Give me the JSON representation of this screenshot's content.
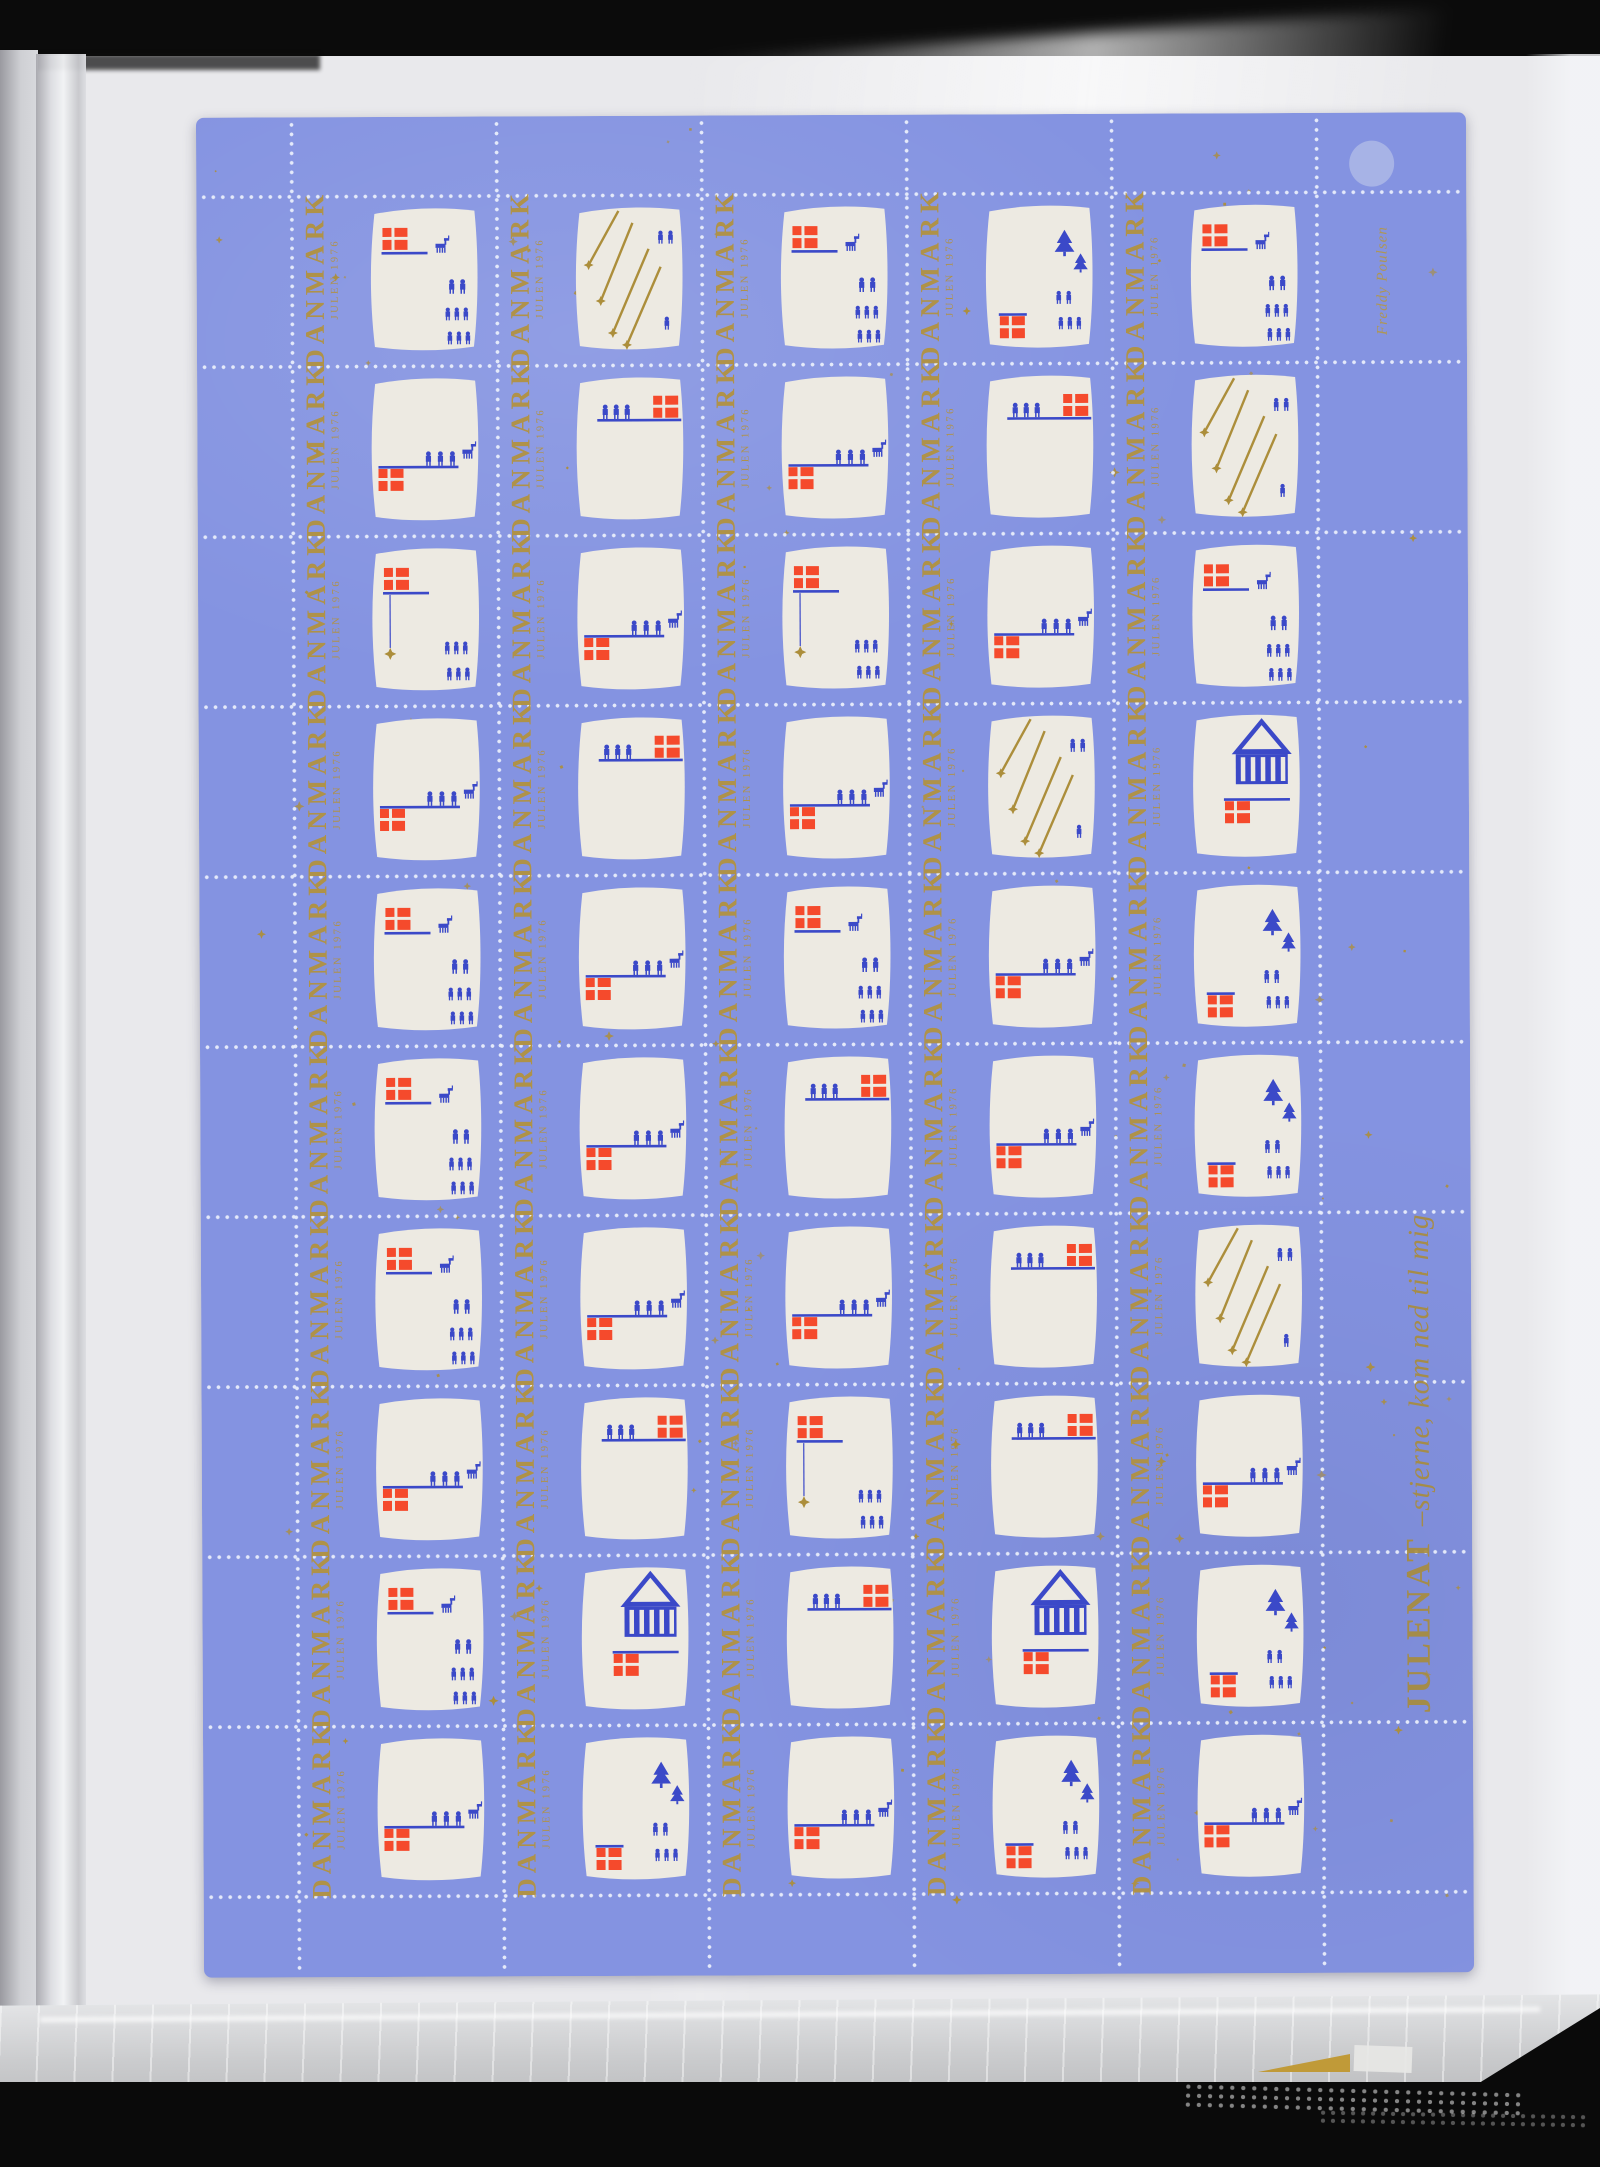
{
  "photo": {
    "subject": "Photograph of a full sheet of 50 Danish Christmas seals (Julen 1976) stored in a stamp-album plastic sleeve",
    "album_page_color": "#e9e9ec",
    "top_bar_color": "#0b0b0b",
    "bottom_shelf_color": "#0a0a0a",
    "plastic_color": "#d6d7db"
  },
  "sheet": {
    "paper_color": "#8493e1",
    "rows": 10,
    "columns": 5,
    "stamp_count": 50,
    "perforation_dot_color": "#e9eefb",
    "gold_color": "#ac8e3b",
    "stamp": {
      "country_label": "DANMARK",
      "issue_label": "JULEN 1976",
      "label_color": "#b3923c",
      "hill_color": "#edeae2",
      "flag_color": "#f54a2c",
      "figure_color": "#3b49c8"
    },
    "selvage": {
      "word": "JULENAT",
      "rest": "–stjerne, kom ned til mig",
      "signature": "Freddy Poulsen",
      "corner_dot_color": "#a9b4e6"
    },
    "variant_grid": [
      "ABAGA",
      "CDCDB",
      "ECECA",
      "CDCBF",
      "ACACG",
      "ACDCG",
      "ACCDB",
      "CDEDC",
      "AFDFG",
      "CGCGC"
    ],
    "variants": {
      "A": "red Dannebrog flag on pole with goat and children at right",
      "B": "gold shooting stars falling among children",
      "C": "procession walking along flag pole, flag at lower left",
      "D": "flag at upper right, children walking on pole",
      "E": "flag on pole with gold star hanging, children below",
      "F": "carousel house above flag",
      "G": "fir trees with children and flag"
    }
  }
}
